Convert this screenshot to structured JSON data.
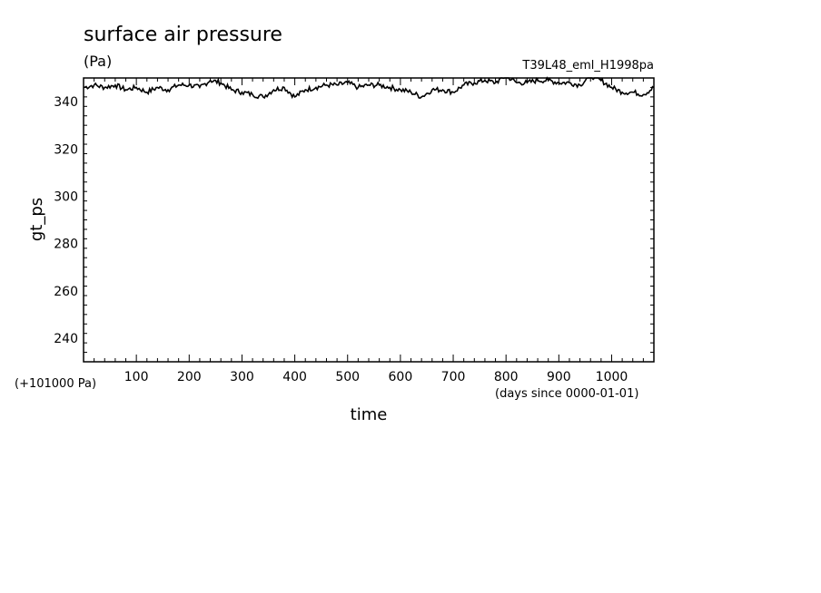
{
  "title": "surface air pressure",
  "units": "(Pa)",
  "experiment": "T39L48_eml_H1998pa",
  "ylabel": "gt_ps",
  "xlabel": "time",
  "y_offset_label": "(+101000 Pa)",
  "x_units_label": "(days since 0000-01-01)",
  "chart_data": {
    "type": "line",
    "title": "surface air pressure",
    "xlabel": "time",
    "ylabel": "gt_ps",
    "xlim": [
      0,
      1080
    ],
    "ylim": [
      230,
      350
    ],
    "x_ticks": [
      100,
      200,
      300,
      400,
      500,
      600,
      700,
      800,
      900,
      1000
    ],
    "y_ticks": [
      240,
      260,
      280,
      300,
      320,
      340
    ],
    "grid": false,
    "series": [
      {
        "x": [
          0,
          20,
          40,
          60,
          80,
          100,
          120,
          140,
          160,
          180,
          200,
          220,
          240,
          260,
          280,
          300,
          320,
          340,
          360,
          380,
          400,
          420,
          440,
          460,
          480,
          500,
          520,
          540,
          560,
          580,
          600,
          620,
          640,
          660,
          680,
          700,
          720,
          740,
          760,
          780,
          800,
          820,
          840,
          860,
          880,
          900,
          920,
          940,
          960,
          980,
          1000,
          1020,
          1040,
          1060,
          1080
        ],
        "y": [
          346,
          347,
          346,
          347,
          345,
          346,
          344,
          346,
          345,
          347,
          347,
          346,
          349,
          348,
          345,
          344,
          343,
          342,
          345,
          346,
          342,
          345,
          346,
          347,
          347,
          348,
          346,
          347,
          347,
          346,
          345,
          344,
          342,
          345,
          345,
          344,
          347,
          348,
          349,
          348,
          351,
          348,
          348,
          349,
          349,
          348,
          348,
          347,
          351,
          349,
          346,
          344,
          344,
          343,
          346
        ]
      }
    ]
  }
}
